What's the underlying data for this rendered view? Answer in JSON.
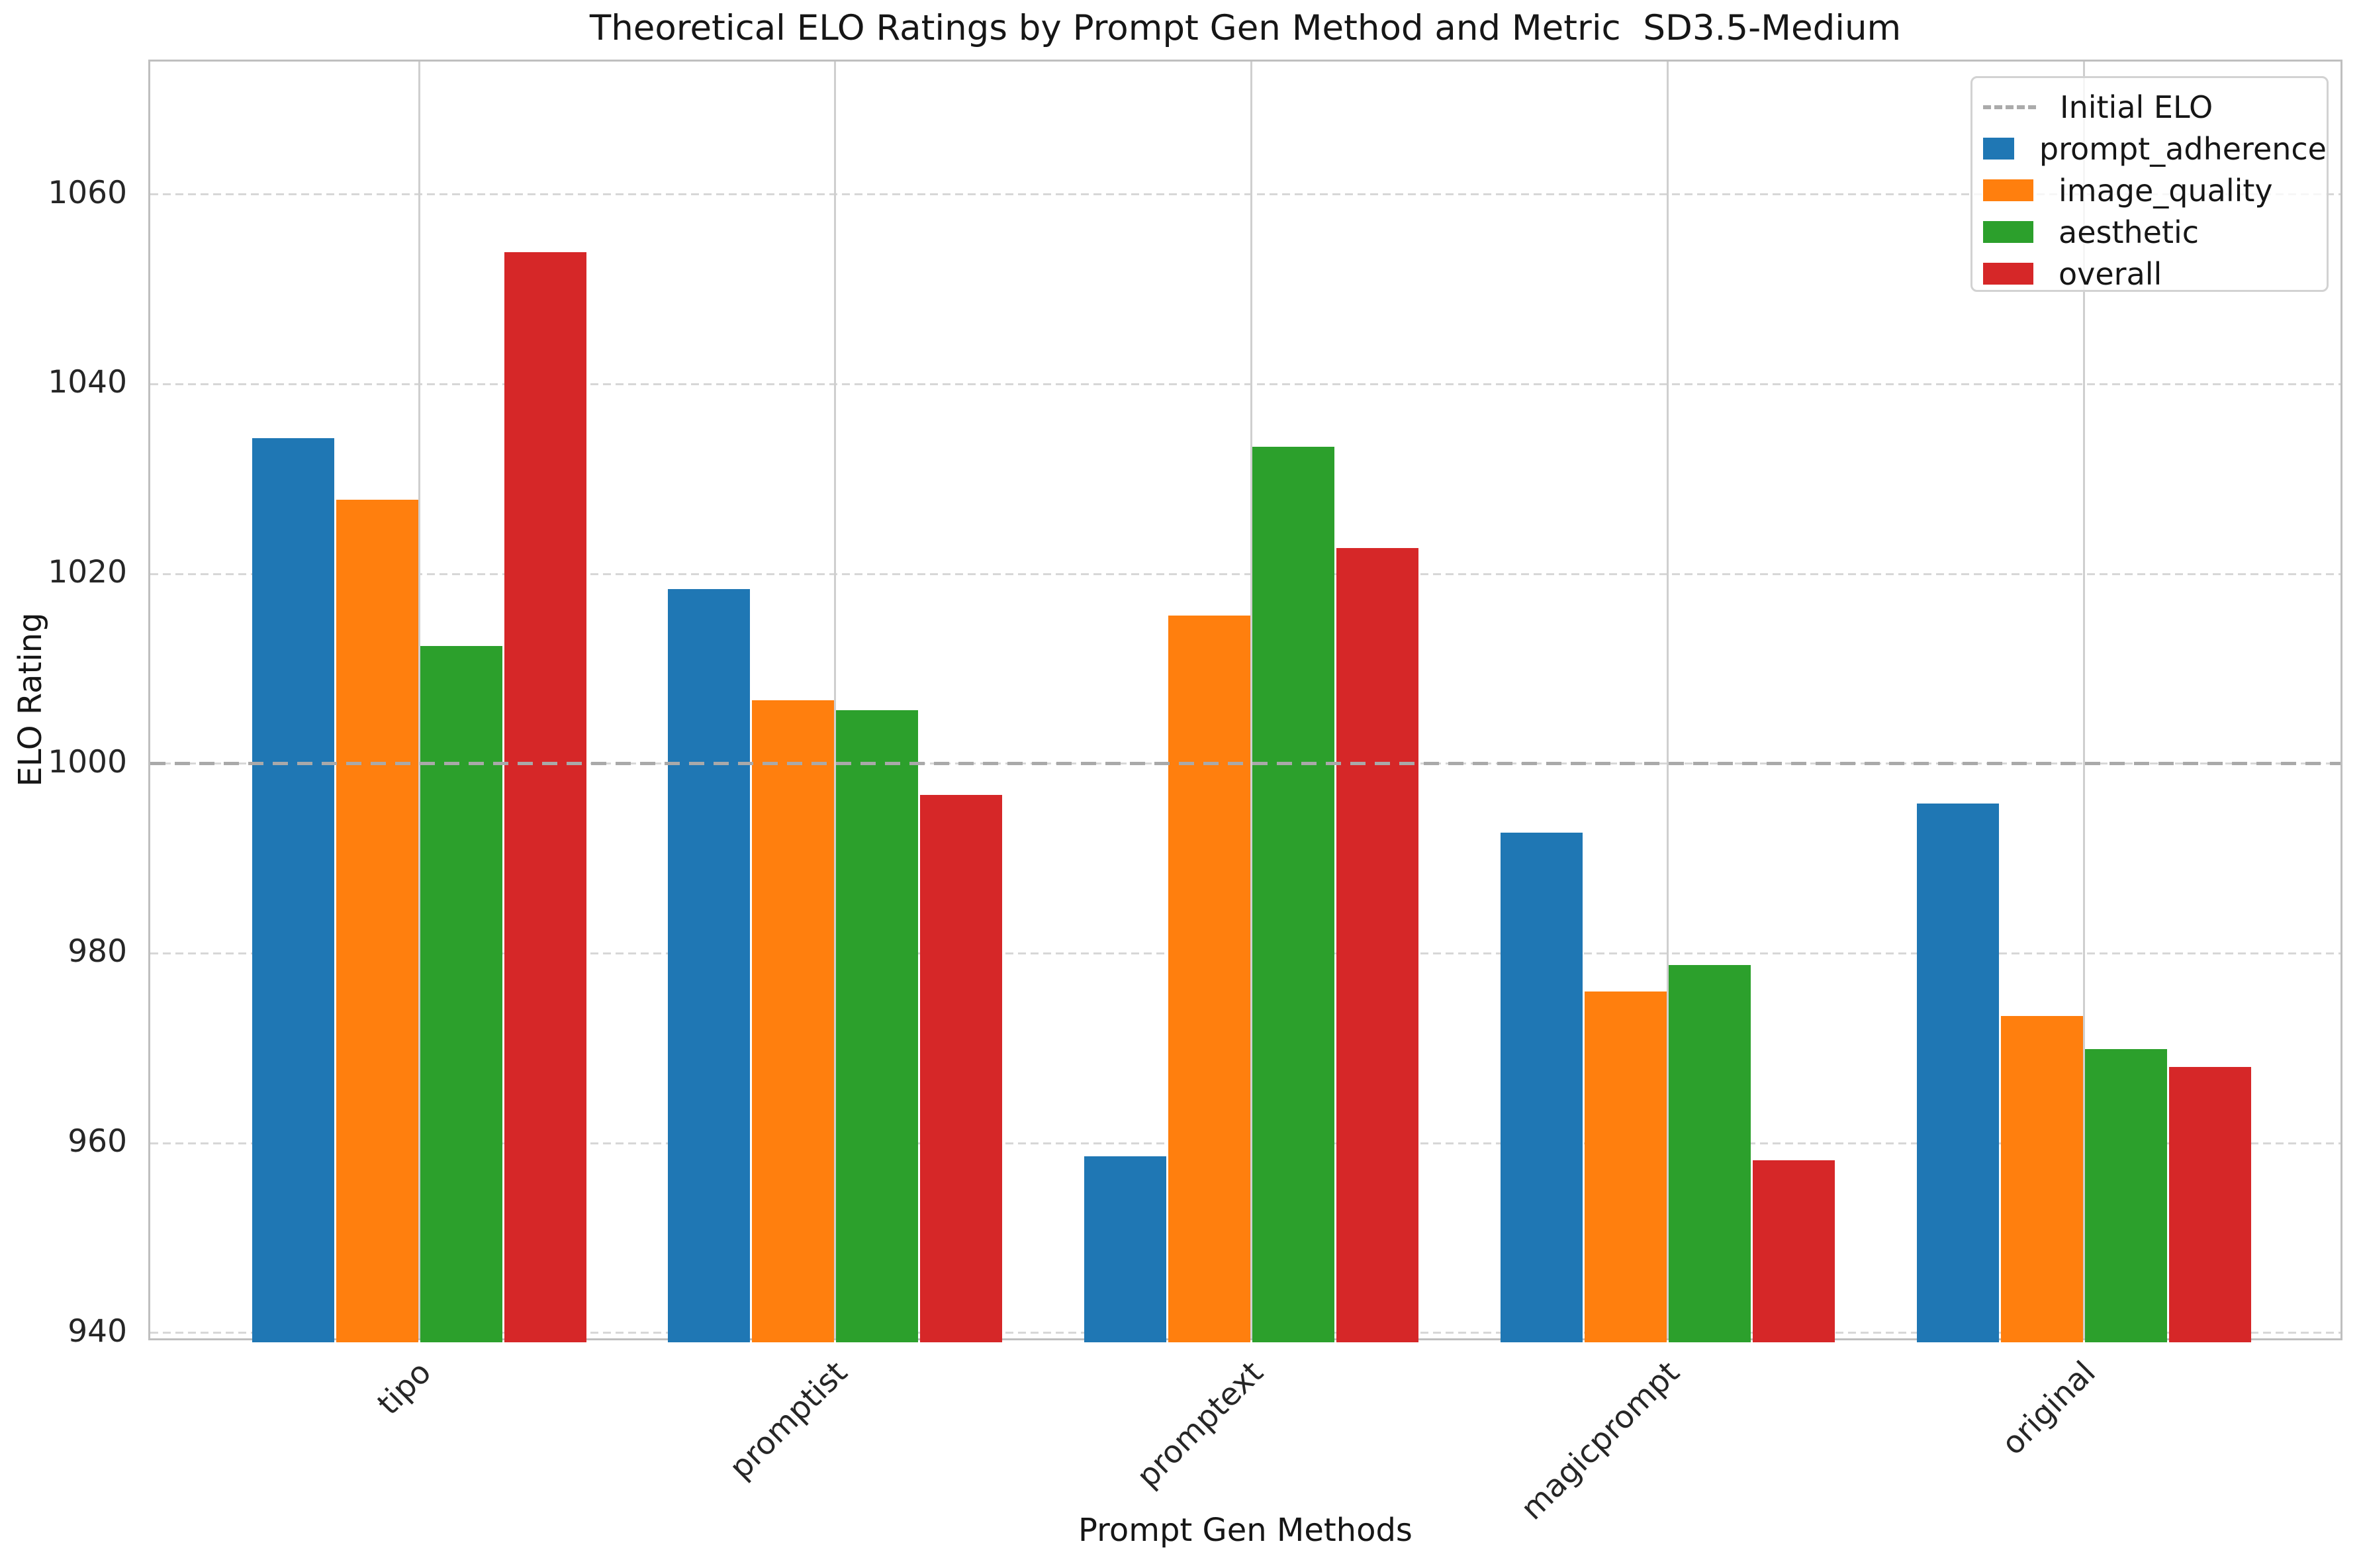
{
  "figure": {
    "title": "Theoretical ELO Ratings by Prompt Gen Method and Metric  SD3.5-Medium",
    "xlabel": "Prompt Gen Methods",
    "ylabel": "ELO Rating"
  },
  "chart_data": {
    "type": "bar",
    "title": "Theoretical ELO Ratings by Prompt Gen Method and Metric  SD3.5-Medium",
    "xlabel": "Prompt Gen Methods",
    "ylabel": "ELO Rating",
    "categories": [
      "tipo",
      "promptist",
      "promptext",
      "magicprompt",
      "original"
    ],
    "series": [
      {
        "name": "prompt_adherence",
        "color": "#1f77b4",
        "values": [
          1034.3,
          1018.4,
          958.6,
          992.7,
          995.8
        ]
      },
      {
        "name": "image_quality",
        "color": "#ff7f0e",
        "values": [
          1027.8,
          1006.7,
          1015.6,
          976.0,
          973.4
        ]
      },
      {
        "name": "aesthetic",
        "color": "#2ca02c",
        "values": [
          1012.4,
          1005.6,
          1033.4,
          978.8,
          969.9
        ]
      },
      {
        "name": "overall",
        "color": "#d62728",
        "values": [
          1053.9,
          996.7,
          1022.7,
          958.2,
          968.0
        ]
      }
    ],
    "baseline": {
      "label": "Initial ELO",
      "value": 1000,
      "color": "#ababab",
      "style": "dashed"
    },
    "yticks": [
      940,
      960,
      980,
      1000,
      1020,
      1040,
      1060
    ],
    "ylim": [
      939,
      1074
    ],
    "grid": true,
    "grid_style": {
      "horizontal": "dashed",
      "vertical": "solid",
      "color": "#d7d7d7"
    },
    "legend_position": "upper right",
    "legend_items": [
      "Initial ELO",
      "prompt_adherence",
      "image_quality",
      "aesthetic",
      "overall"
    ],
    "background": "#ffffff",
    "text_color": "#161616"
  }
}
